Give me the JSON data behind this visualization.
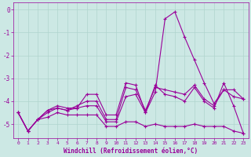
{
  "xlabel": "Windchill (Refroidissement éolien,°C)",
  "background_color": "#cce8e4",
  "grid_color": "#b0d4ce",
  "line_color": "#990099",
  "xlim": [
    -0.5,
    23.5
  ],
  "ylim": [
    -5.6,
    0.3
  ],
  "yticks": [
    0,
    -1,
    -2,
    -3,
    -4,
    -5
  ],
  "xticks": [
    0,
    1,
    2,
    3,
    4,
    5,
    6,
    7,
    8,
    9,
    10,
    11,
    12,
    13,
    14,
    15,
    16,
    17,
    18,
    19,
    20,
    21,
    22,
    23
  ],
  "series": [
    [
      -4.5,
      -5.3,
      -4.8,
      -4.4,
      -4.3,
      -4.4,
      -4.2,
      -4.0,
      -4.0,
      -4.8,
      -4.8,
      -3.4,
      -3.5,
      -4.4,
      -3.4,
      -3.5,
      -3.6,
      -3.7,
      -3.3,
      -3.9,
      -4.2,
      -3.5,
      -3.8,
      -3.9
    ],
    [
      -4.5,
      -5.3,
      -4.8,
      -4.7,
      -4.5,
      -4.6,
      -4.6,
      -4.6,
      -4.6,
      -5.1,
      -5.1,
      -4.9,
      -4.9,
      -5.1,
      -5.0,
      -5.1,
      -5.1,
      -5.1,
      -5.0,
      -5.1,
      -5.1,
      -5.1,
      -5.3,
      -5.4
    ],
    [
      -4.5,
      -5.3,
      -4.8,
      -4.5,
      -4.3,
      -4.4,
      -4.3,
      -4.2,
      -4.2,
      -4.9,
      -4.9,
      -3.8,
      -3.7,
      -4.5,
      -3.6,
      -0.4,
      -0.1,
      -1.2,
      -2.2,
      -3.2,
      -4.1,
      -3.5,
      -3.5,
      -3.9
    ],
    [
      -4.5,
      -5.3,
      -4.8,
      -4.4,
      -4.2,
      -4.3,
      -4.3,
      -3.7,
      -3.7,
      -4.6,
      -4.6,
      -3.2,
      -3.3,
      -4.5,
      -3.3,
      -3.7,
      -3.8,
      -4.0,
      -3.4,
      -4.0,
      -4.3,
      -3.2,
      -4.2,
      -5.4
    ]
  ]
}
